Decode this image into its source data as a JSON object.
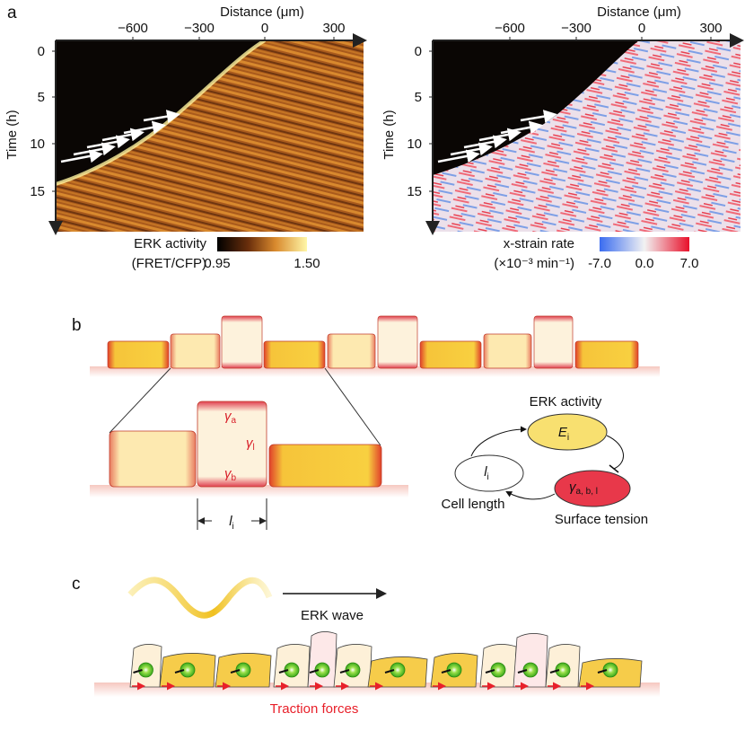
{
  "panel_a": {
    "label": "a",
    "left": {
      "x_axis_title": "Distance (μm)",
      "x_ticks": [
        "−600",
        "−300",
        "0",
        "300"
      ],
      "y_axis_title": "Time (h)",
      "y_ticks": [
        "0",
        "5",
        "10",
        "15"
      ],
      "colorbar": {
        "title": "ERK activity",
        "subtitle": "(FRET/CFP)",
        "tick_labels": [
          "0.95",
          "1.50"
        ]
      }
    },
    "right": {
      "x_axis_title": "Distance (μm)",
      "x_ticks": [
        "−600",
        "−300",
        "0",
        "300"
      ],
      "y_axis_title": "Time (h)",
      "y_ticks": [
        "0",
        "5",
        "10",
        "15"
      ],
      "colorbar": {
        "title": "x-strain rate",
        "subtitle": "(×10⁻³ min⁻¹)",
        "tick_labels": [
          "-7.0",
          "0.0",
          "7.0"
        ]
      }
    }
  },
  "panel_b": {
    "label": "b",
    "tensions": [
      {
        "symbol": "γ",
        "sub": "a"
      },
      {
        "symbol": "γ",
        "sub": "l"
      },
      {
        "symbol": "γ",
        "sub": "b"
      }
    ],
    "length": {
      "symbol": "l",
      "sub": "i"
    },
    "cycle": {
      "erk_title": "ERK activity",
      "erk_node": {
        "symbol": "E",
        "sub": "i"
      },
      "length_node": {
        "symbol": "l",
        "sub": "i"
      },
      "length_title": "Cell length",
      "tension_node": {
        "symbol": "γ",
        "sub": "a, b, l"
      },
      "tension_title": "Surface tension"
    }
  },
  "panel_c": {
    "label": "c",
    "wave_label": "ERK wave",
    "force_label": "Traction forces"
  }
}
